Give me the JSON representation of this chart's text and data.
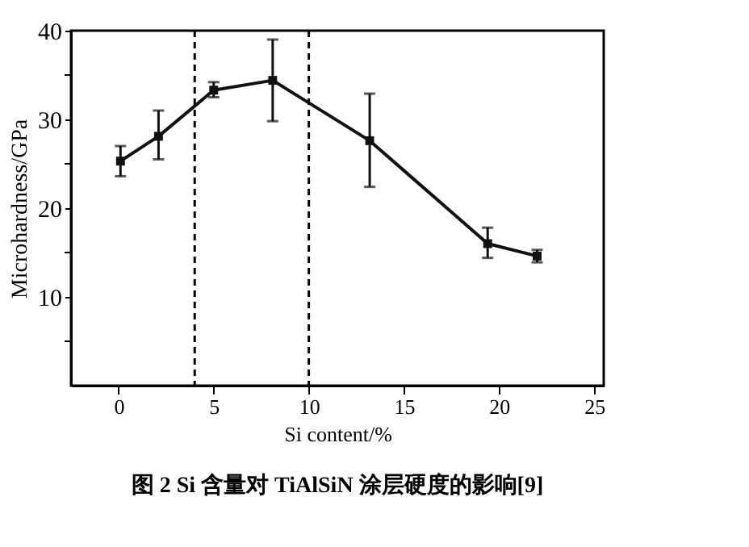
{
  "chart_data": {
    "type": "line",
    "title": "图 2  Si 含量对 TiAlSiN 涂层硬度的影响[9]",
    "xlabel": "Si content/%",
    "ylabel": "Microhardness/GPa",
    "x": [
      0.1,
      2.1,
      5,
      8.1,
      13.2,
      19.4,
      22
    ],
    "series": [
      {
        "color": "#111111",
        "values": [
          25.3,
          28.1,
          33.3,
          34.4,
          27.6,
          16.0,
          14.6
        ],
        "errors": [
          [
            23.6,
            27
          ],
          [
            25.5,
            31
          ],
          [
            32.5,
            34.2
          ],
          [
            29.8,
            39
          ],
          [
            22.4,
            32.9
          ],
          [
            14.4,
            17.8
          ],
          [
            13.9,
            15.3
          ]
        ]
      }
    ],
    "marker": "square",
    "line_style": "solid",
    "xlim": [
      -2.5,
      25.5
    ],
    "xticks": [
      0,
      5,
      10,
      15,
      20,
      25
    ],
    "ylim": [
      0,
      40
    ],
    "yticks": [
      {
        "value": 5,
        "label": null
      },
      10,
      {
        "value": 15,
        "label": null
      },
      20,
      {
        "value": 25,
        "label": null
      },
      30,
      {
        "value": 35,
        "label": null
      },
      40
    ],
    "ref_lines": [
      {
        "axis": "x",
        "value": 4,
        "line_style": "dashed"
      },
      {
        "axis": "x",
        "value": 10,
        "line_style": "dashed"
      }
    ],
    "grid": false
  }
}
